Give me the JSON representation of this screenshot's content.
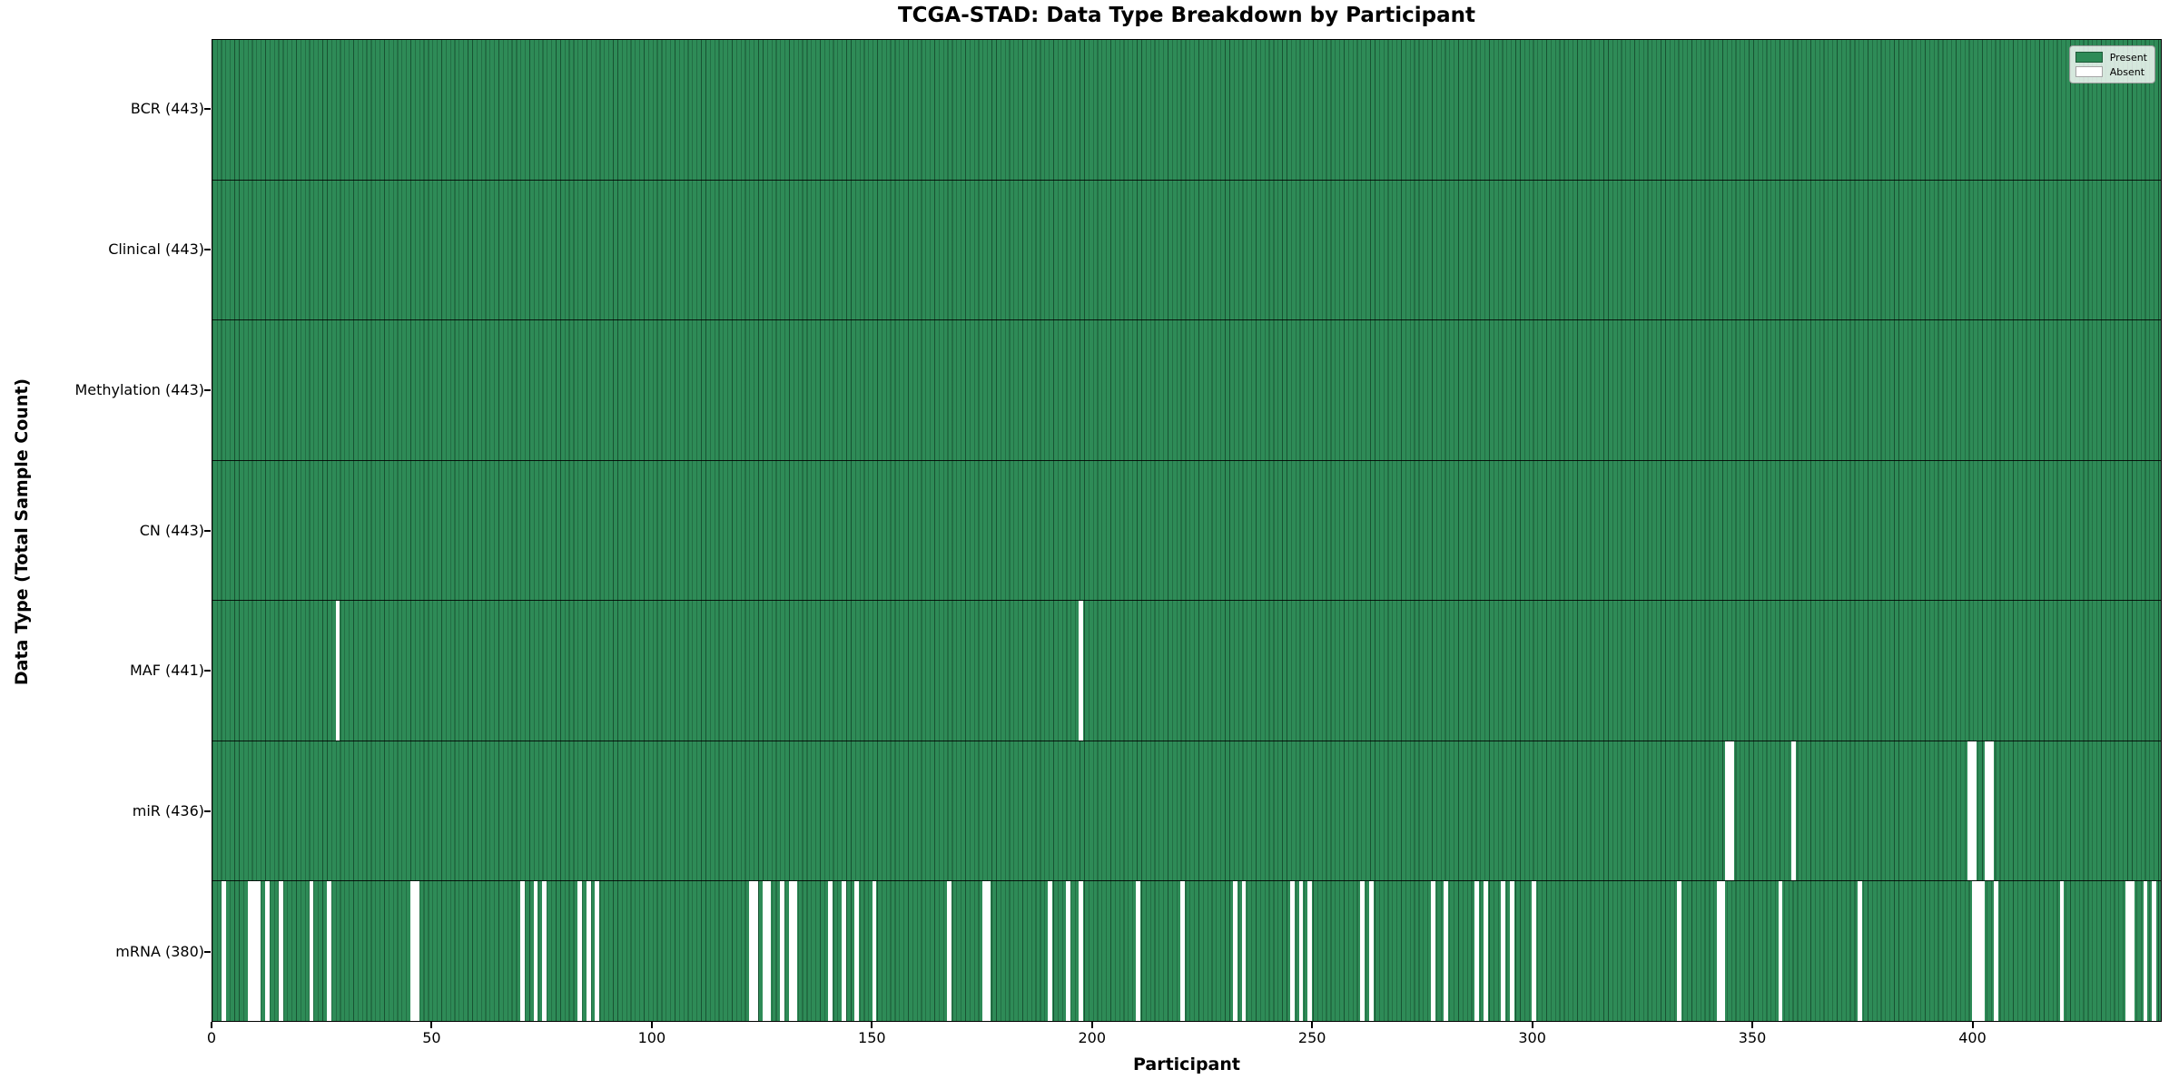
{
  "title": "TCGA-STAD: Data Type Breakdown by Participant",
  "xlabel": "Participant",
  "ylabel": "Data Type (Total Sample Count)",
  "legend": {
    "present_label": "Present",
    "absent_label": "Absent",
    "position": "upper right"
  },
  "colors": {
    "present": "#2e8b57",
    "absent": "#ffffff",
    "bar_edge": "rgba(5,35,20,0.55)",
    "axis": "#000000"
  },
  "chart_data": {
    "type": "heatmap",
    "title": "TCGA-STAD: Data Type Breakdown by Participant",
    "xlabel": "Participant",
    "ylabel": "Data Type (Total Sample Count)",
    "grid": false,
    "legend_position": "upper right",
    "legend_entries": [
      {
        "label": "Present",
        "color": "#2e8b57"
      },
      {
        "label": "Absent",
        "color": "#ffffff"
      }
    ],
    "n_participants": 443,
    "x_ticks": [
      0,
      50,
      100,
      150,
      200,
      250,
      300,
      350,
      400
    ],
    "rows": [
      {
        "name": "BCR",
        "label": "BCR (443)",
        "total": 443,
        "absent_participants": []
      },
      {
        "name": "Clinical",
        "label": "Clinical (443)",
        "total": 443,
        "absent_participants": []
      },
      {
        "name": "Methylation",
        "label": "Methylation (443)",
        "total": 443,
        "absent_participants": []
      },
      {
        "name": "CN",
        "label": "CN (443)",
        "total": 443,
        "absent_participants": []
      },
      {
        "name": "MAF",
        "label": "MAF (441)",
        "total": 441,
        "absent_participants": [
          28,
          197
        ]
      },
      {
        "name": "miR",
        "label": "miR (436)",
        "total": 436,
        "absent_participants": [
          344,
          345,
          359,
          399,
          400,
          403,
          404
        ]
      },
      {
        "name": "mRNA",
        "label": "mRNA (380)",
        "total": 380,
        "absent_participants": [
          2,
          8,
          9,
          10,
          12,
          15,
          22,
          26,
          45,
          46,
          70,
          73,
          75,
          83,
          85,
          87,
          122,
          123,
          125,
          126,
          129,
          131,
          132,
          140,
          143,
          146,
          150,
          167,
          175,
          176,
          190,
          194,
          197,
          210,
          220,
          232,
          234,
          245,
          247,
          249,
          261,
          263,
          277,
          280,
          287,
          289,
          293,
          295,
          300,
          333,
          342,
          343,
          356,
          374,
          400,
          401,
          402,
          405,
          420,
          435,
          436,
          439,
          441
        ]
      }
    ]
  }
}
